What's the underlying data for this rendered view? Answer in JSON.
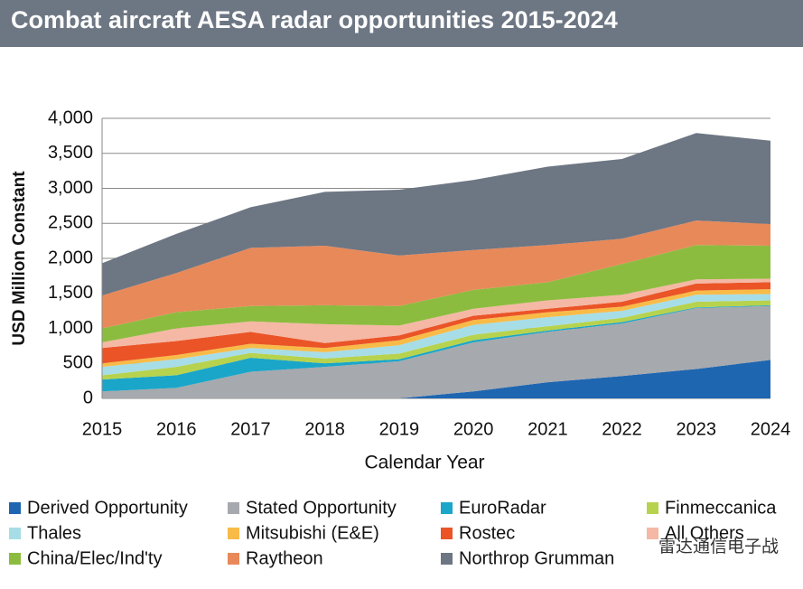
{
  "chart_data": {
    "type": "stacked_area",
    "title": "Combat aircraft AESA radar opportunities 2015-2024",
    "y_label": "USD Million Constant",
    "x_label": "Calendar Year",
    "x": [
      2015,
      2016,
      2017,
      2018,
      2019,
      2020,
      2021,
      2022,
      2023,
      2024
    ],
    "xlim": [
      2015,
      2024
    ],
    "ylim": [
      0,
      4000
    ],
    "yticks": [
      0,
      {
        "value": 500,
        "label": "500"
      },
      {
        "value": 1000,
        "label": "1,000"
      },
      {
        "value": 1500,
        "label": "1,500"
      },
      {
        "value": 2000,
        "label": "2,000"
      },
      {
        "value": 2500,
        "label": "2,500"
      },
      {
        "value": 3000,
        "label": "3,000"
      },
      {
        "value": 3500,
        "label": "3,500"
      },
      {
        "value": 4000,
        "label": "4,000"
      }
    ],
    "grid": true,
    "series": [
      {
        "name": "Derived Opportunity",
        "color": "#1f66b1",
        "values": [
          0,
          0,
          0,
          0,
          0,
          100,
          230,
          320,
          420,
          550
        ]
      },
      {
        "name": "Stated Opportunity",
        "color": "#a6a9ad",
        "values": [
          100,
          150,
          380,
          450,
          530,
          700,
          720,
          750,
          870,
          770
        ]
      },
      {
        "name": "EuroRadar",
        "color": "#1aa6c9",
        "values": [
          170,
          180,
          200,
          50,
          30,
          30,
          20,
          20,
          10,
          10
        ]
      },
      {
        "name": "Finmeccanica",
        "color": "#b7d24d",
        "values": [
          60,
          120,
          70,
          70,
          80,
          80,
          60,
          60,
          80,
          70
        ]
      },
      {
        "name": "Thales",
        "color": "#a7dde6",
        "values": [
          120,
          110,
          70,
          90,
          120,
          140,
          130,
          100,
          100,
          90
        ]
      },
      {
        "name": "Mitsubishi (E&E)",
        "color": "#f8bb48",
        "values": [
          50,
          60,
          60,
          60,
          70,
          70,
          70,
          60,
          60,
          70
        ]
      },
      {
        "name": "Rostec",
        "color": "#ea5427",
        "values": [
          220,
          200,
          170,
          70,
          70,
          60,
          50,
          70,
          100,
          100
        ]
      },
      {
        "name": "All Others",
        "color": "#f5b8a4",
        "values": [
          80,
          180,
          150,
          270,
          140,
          100,
          120,
          100,
          60,
          50
        ]
      },
      {
        "name": "China/Elec/Ind'ty",
        "color": "#8cbc3f",
        "values": [
          200,
          230,
          220,
          270,
          280,
          270,
          260,
          440,
          490,
          470
        ]
      },
      {
        "name": "Raytheon",
        "color": "#e8895a",
        "values": [
          470,
          560,
          830,
          850,
          720,
          570,
          530,
          360,
          350,
          310
        ]
      },
      {
        "name": "Northrop Grumman",
        "color": "#6d7683",
        "values": [
          460,
          560,
          580,
          770,
          940,
          1000,
          1120,
          1140,
          1250,
          1190
        ]
      }
    ],
    "watermark": "雷达通信电子战"
  }
}
